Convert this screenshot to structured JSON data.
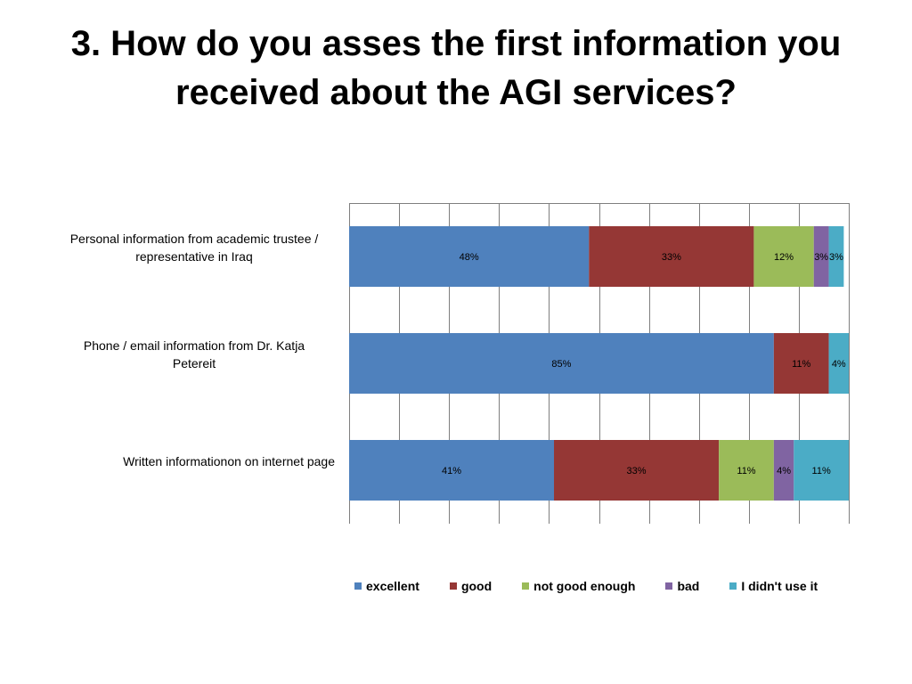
{
  "title": "3. How do you asses the first information you received about the AGI services?",
  "colors": {
    "excellent": "#4F81BD",
    "good": "#953735",
    "not_good_enough": "#9BBB59",
    "bad": "#8064A2",
    "didnt_use": "#4BACC6",
    "grid": "#7f7f7f"
  },
  "chart_data": {
    "type": "bar",
    "orientation": "horizontal",
    "stacked": "100%",
    "categories": [
      [
        "Personal information from academic trustee /",
        "representative in Iraq"
      ],
      [
        "Phone / email information from Dr. Katja",
        "Petereit"
      ],
      [
        "Written informationon on internet page"
      ]
    ],
    "series": [
      {
        "name": "excellent",
        "values": [
          48,
          85,
          41
        ],
        "labels": [
          "48%",
          "85%",
          "41%"
        ],
        "color": "#4F81BD"
      },
      {
        "name": "good",
        "values": [
          33,
          11,
          33
        ],
        "labels": [
          "33%",
          "11%",
          "33%"
        ],
        "color": "#953735"
      },
      {
        "name": "not good enough",
        "values": [
          12,
          0,
          11
        ],
        "labels": [
          "12%",
          "",
          "11%"
        ],
        "color": "#9BBB59"
      },
      {
        "name": "bad",
        "values": [
          3,
          0,
          4
        ],
        "labels": [
          "3%",
          "",
          "4%"
        ],
        "color": "#8064A2"
      },
      {
        "name": "I didn't use it",
        "values": [
          3,
          4,
          11
        ],
        "labels": [
          "3%",
          "4%",
          "11%"
        ],
        "color": "#4BACC6"
      }
    ],
    "xlim": [
      0,
      100
    ],
    "grid": true,
    "legend_position": "bottom"
  }
}
